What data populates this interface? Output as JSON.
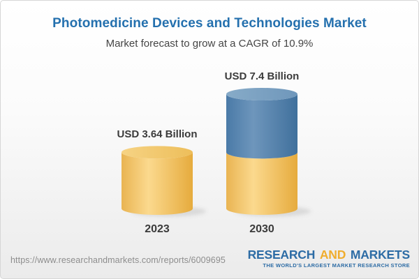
{
  "header": {
    "title": "Photomedicine Devices and Technologies Market",
    "subtitle": "Market forecast to grow at a CAGR of 10.9%"
  },
  "chart_data": {
    "type": "bar",
    "style": "3d-stacked-cylinder",
    "title": "Photomedicine Devices and Technologies Market",
    "subtitle": "Market forecast to grow at a CAGR of 10.9%",
    "unit": "USD Billion",
    "cagr_percent": 10.9,
    "categories": [
      "2023",
      "2030"
    ],
    "values": [
      3.64,
      7.4
    ],
    "value_labels": [
      "USD 3.64 Billion",
      "USD 7.4 Billion"
    ],
    "ylim": [
      0,
      7.4
    ],
    "grid": false,
    "legend": false,
    "bars": [
      {
        "category": "2023",
        "label": "USD 3.64 Billion",
        "segments": [
          {
            "color": "gold",
            "value": 3.64
          }
        ]
      },
      {
        "category": "2030",
        "label": "USD 7.4 Billion",
        "segments": [
          {
            "color": "gold",
            "value": 3.64
          },
          {
            "color": "blue",
            "value": 3.76
          }
        ]
      }
    ],
    "colors": {
      "gold": "#f2c464",
      "blue": "#5a87b0"
    }
  },
  "footer": {
    "url": "https://www.researchandmarkets.com/reports/6009695",
    "logo": {
      "part1": "RESEARCH",
      "part2": "AND",
      "part3": "MARKETS",
      "tagline": "THE WORLD'S LARGEST MARKET RESEARCH STORE"
    }
  },
  "colors": {
    "title_blue": "#2470ae",
    "text_dark": "#3b3b3b",
    "url_gray": "#8d8d8d",
    "logo_blue": "#2d6ca5",
    "logo_gold": "#f0ad2e"
  }
}
